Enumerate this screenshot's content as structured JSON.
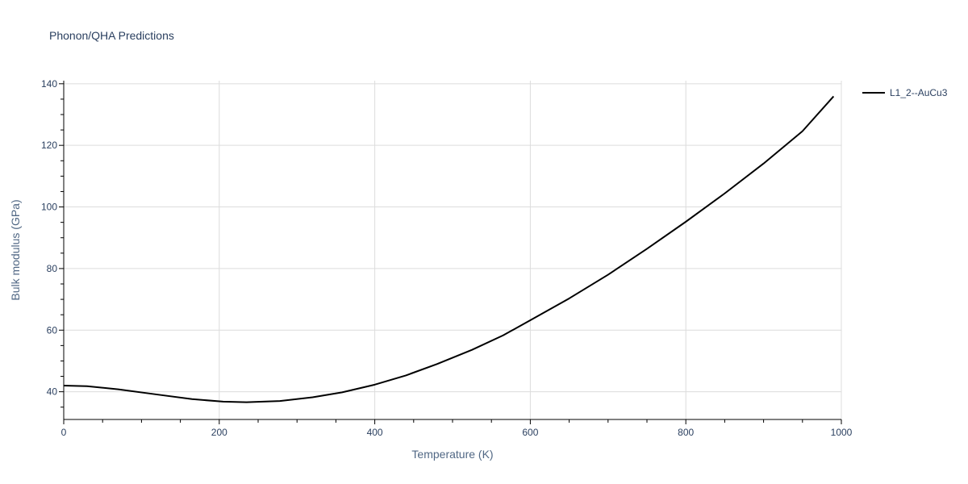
{
  "title": "Phonon/QHA Predictions",
  "chart_data": {
    "type": "line",
    "xlabel": "Temperature (K)",
    "ylabel": "Bulk modulus (GPa)",
    "xlim": [
      0,
      1000
    ],
    "ylim": [
      31,
      141
    ],
    "xticks": [
      0,
      200,
      400,
      600,
      800,
      1000
    ],
    "yticks": [
      40,
      60,
      80,
      100,
      120,
      140
    ],
    "grid": true,
    "legend_position": "top-right",
    "series": [
      {
        "name": "L1_2--AuCu3",
        "color": "#000000",
        "x": [
          0,
          30,
          70,
          120,
          165,
          205,
          235,
          278,
          320,
          358,
          400,
          440,
          480,
          525,
          565,
          600,
          650,
          700,
          750,
          800,
          850,
          900,
          950,
          990
        ],
        "y": [
          42.0,
          41.8,
          40.8,
          39.1,
          37.6,
          36.8,
          36.6,
          37.0,
          38.2,
          39.8,
          42.3,
          45.3,
          49.0,
          53.6,
          58.3,
          63.2,
          70.3,
          78.0,
          86.4,
          95.2,
          104.4,
          114.1,
          124.6,
          135.9
        ]
      }
    ]
  }
}
